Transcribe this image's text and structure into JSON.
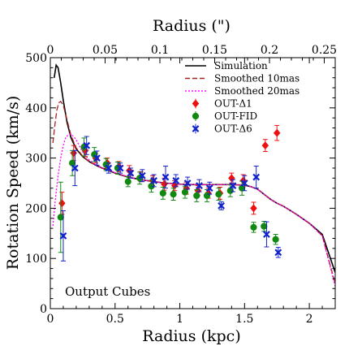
{
  "chart_data": {
    "type": "line",
    "xlabel": "Radius (kpc)",
    "ylabel": "Rotation Speed (km/s)",
    "x2label": "Radius (\")",
    "xlim": [
      0,
      2.2
    ],
    "ylim": [
      0,
      500
    ],
    "x2lim": [
      0,
      0.26
    ],
    "xticks": [
      0,
      0.5,
      1,
      1.5,
      2
    ],
    "xtick_labels": [
      "0",
      "0.5",
      "1",
      "1.5",
      "2"
    ],
    "yticks": [
      0,
      100,
      200,
      300,
      400,
      500
    ],
    "ytick_labels": [
      "0",
      "100",
      "200",
      "300",
      "400",
      "500"
    ],
    "x2ticks": [
      0,
      0.05,
      0.1,
      0.15,
      0.2,
      0.25
    ],
    "x2tick_labels": [
      "0",
      "0.05",
      "0.1",
      "0.15",
      "0.2",
      "0.25"
    ],
    "annotation": "Output Cubes",
    "legend_position": "top-right",
    "grid": false,
    "lines": [
      {
        "name": "Simulation",
        "color": "#000000",
        "style": "solid",
        "x": [
          0.03,
          0.045,
          0.06,
          0.08,
          0.1,
          0.13,
          0.16,
          0.2,
          0.25,
          0.3,
          0.35,
          0.4,
          0.5,
          0.6,
          0.7,
          0.8,
          0.9,
          1.0,
          1.1,
          1.2,
          1.3,
          1.4,
          1.5,
          1.55,
          1.6,
          1.65,
          1.7,
          1.75,
          1.8,
          1.9,
          2.0,
          2.1,
          2.2
        ],
        "y": [
          460,
          485,
          480,
          450,
          415,
          370,
          340,
          318,
          303,
          293,
          286,
          280,
          270,
          262,
          257,
          253,
          250,
          248,
          247,
          247,
          247,
          247,
          246,
          243,
          238,
          228,
          218,
          210,
          204,
          188,
          170,
          148,
          72
        ]
      },
      {
        "name": "Smoothed 10mas",
        "color": "#aa2222",
        "style": "dash",
        "x": [
          0.02,
          0.035,
          0.05,
          0.065,
          0.08,
          0.1,
          0.13,
          0.16,
          0.2,
          0.25,
          0.3,
          0.35,
          0.4,
          0.5,
          0.6,
          0.7,
          0.8,
          0.9,
          1.0,
          1.1,
          1.2,
          1.3,
          1.4,
          1.5,
          1.55,
          1.6,
          1.65,
          1.7,
          1.75,
          1.8,
          1.9,
          2.0,
          2.1,
          2.2
        ],
        "y": [
          330,
          365,
          395,
          410,
          413,
          405,
          375,
          345,
          320,
          304,
          293,
          286,
          280,
          270,
          262,
          257,
          253,
          250,
          248,
          247,
          247,
          247,
          247,
          246,
          243,
          238,
          228,
          218,
          210,
          204,
          188,
          170,
          145,
          50
        ]
      },
      {
        "name": "Smoothed 20mas",
        "color": "#ff00ff",
        "style": "dot",
        "x": [
          0.02,
          0.04,
          0.06,
          0.08,
          0.1,
          0.12,
          0.15,
          0.18,
          0.2,
          0.25,
          0.3,
          0.35,
          0.4,
          0.5,
          0.6,
          0.7,
          0.8,
          0.9,
          1.0,
          1.1,
          1.2,
          1.3,
          1.4,
          1.5,
          1.55,
          1.6,
          1.65,
          1.7,
          1.75,
          1.8,
          1.9,
          2.0,
          2.1,
          2.2
        ],
        "y": [
          165,
          220,
          265,
          300,
          325,
          342,
          348,
          343,
          336,
          312,
          296,
          287,
          281,
          271,
          263,
          257,
          253,
          250,
          248,
          247,
          247,
          247,
          247,
          246,
          243,
          238,
          228,
          218,
          210,
          204,
          188,
          170,
          145,
          45
        ]
      }
    ],
    "series": [
      {
        "name": "OUT-Δ1",
        "color": "#ee1111",
        "marker": "diamond",
        "x": [
          0.09,
          0.18,
          0.27,
          0.35,
          0.44,
          0.53,
          0.61,
          0.7,
          0.79,
          0.88,
          0.96,
          1.05,
          1.14,
          1.22,
          1.31,
          1.4,
          1.49,
          1.57,
          1.66,
          1.75
        ],
        "y": [
          210,
          310,
          315,
          300,
          290,
          283,
          275,
          263,
          255,
          248,
          245,
          240,
          235,
          230,
          230,
          260,
          255,
          200,
          325,
          350
        ],
        "err": [
          22,
          15,
          12,
          10,
          10,
          10,
          10,
          10,
          10,
          12,
          10,
          12,
          10,
          10,
          12,
          10,
          12,
          12,
          12,
          15
        ]
      },
      {
        "name": "OUT-FID",
        "color": "#118811",
        "marker": "circle",
        "x": [
          0.08,
          0.17,
          0.26,
          0.34,
          0.43,
          0.52,
          0.6,
          0.69,
          0.78,
          0.87,
          0.95,
          1.04,
          1.13,
          1.21,
          1.3,
          1.39,
          1.48,
          1.57,
          1.65,
          1.74
        ],
        "y": [
          182,
          290,
          322,
          307,
          287,
          280,
          253,
          260,
          244,
          230,
          228,
          232,
          225,
          225,
          228,
          235,
          240,
          162,
          164,
          138
        ],
        "err": [
          70,
          25,
          18,
          14,
          12,
          12,
          10,
          12,
          12,
          12,
          12,
          12,
          12,
          12,
          12,
          12,
          14,
          10,
          10,
          10
        ]
      },
      {
        "name": "OUT-Δ6",
        "color": "#1122cc",
        "marker": "x",
        "x": [
          0.1,
          0.19,
          0.28,
          0.36,
          0.45,
          0.54,
          0.62,
          0.71,
          0.8,
          0.89,
          0.97,
          1.06,
          1.15,
          1.23,
          1.32,
          1.41,
          1.5,
          1.59,
          1.67,
          1.76
        ],
        "y": [
          145,
          280,
          325,
          300,
          280,
          280,
          270,
          265,
          255,
          262,
          255,
          250,
          245,
          240,
          205,
          245,
          250,
          262,
          148,
          112
        ],
        "err": [
          50,
          35,
          18,
          14,
          10,
          10,
          10,
          12,
          12,
          22,
          12,
          12,
          12,
          12,
          8,
          12,
          15,
          22,
          25,
          10
        ]
      }
    ]
  }
}
